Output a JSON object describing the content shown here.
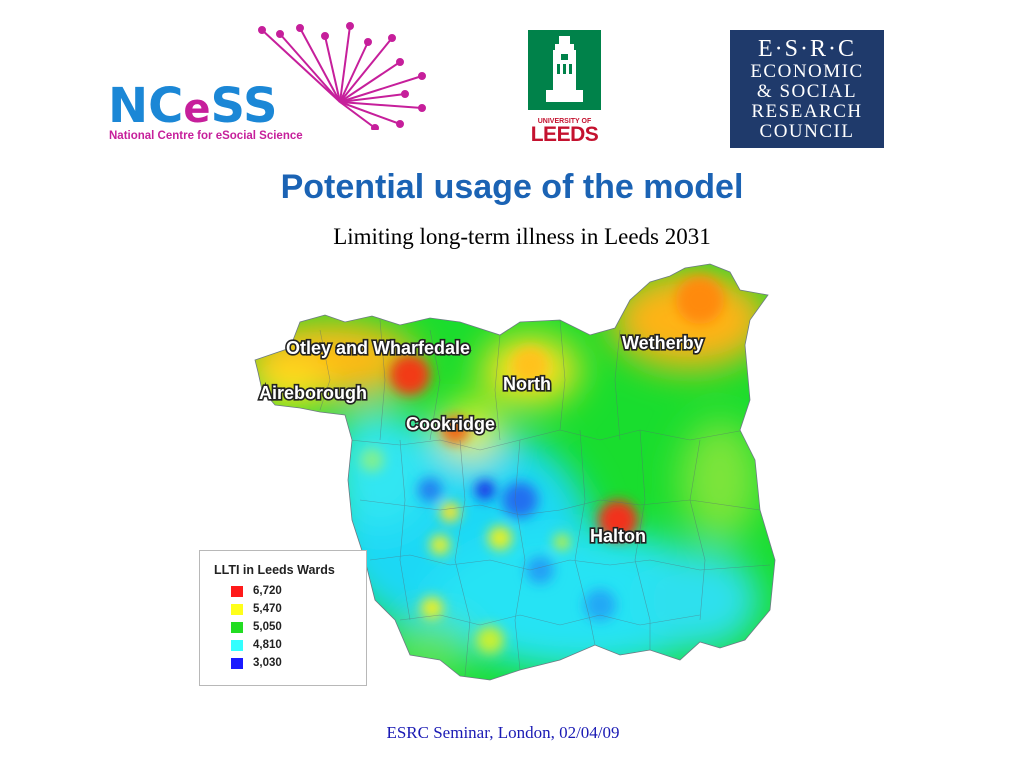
{
  "logos": {
    "ncess": {
      "word": "NCeSS",
      "word_pre": "NC",
      "word_e": "e",
      "word_post": "SS",
      "tagline": "National Centre for eSocial Science",
      "colors": {
        "blue": "#1b87d6",
        "magenta": "#c61f9b"
      }
    },
    "leeds": {
      "line1": "UNIVERSITY OF",
      "line2": "LEEDS",
      "colors": {
        "green": "#00824a",
        "red": "#c4122f"
      }
    },
    "esrc": {
      "line1": "E·S·R·C",
      "line2": "ECONOMIC",
      "line3": "& SOCIAL",
      "line4": "RESEARCH",
      "line5": "COUNCIL",
      "color": "#1f3a6b"
    }
  },
  "title": "Potential usage of the model",
  "subtitle": "Limiting long-term illness in Leeds 2031",
  "map": {
    "places": [
      "Otley and Wharfedale",
      "Wetherby",
      "North",
      "Aireborough",
      "Cookridge",
      "Halton"
    ]
  },
  "legend": {
    "title": "LLTI in Leeds Wards",
    "items": [
      {
        "value": "6,720",
        "color": "#ff1a1a"
      },
      {
        "value": "5,470",
        "color": "#ffff1a"
      },
      {
        "value": "5,050",
        "color": "#22dd22"
      },
      {
        "value": "4,810",
        "color": "#33ffff"
      },
      {
        "value": "3,030",
        "color": "#1a1aff"
      }
    ]
  },
  "footer": "ESRC Seminar, London, 02/04/09"
}
